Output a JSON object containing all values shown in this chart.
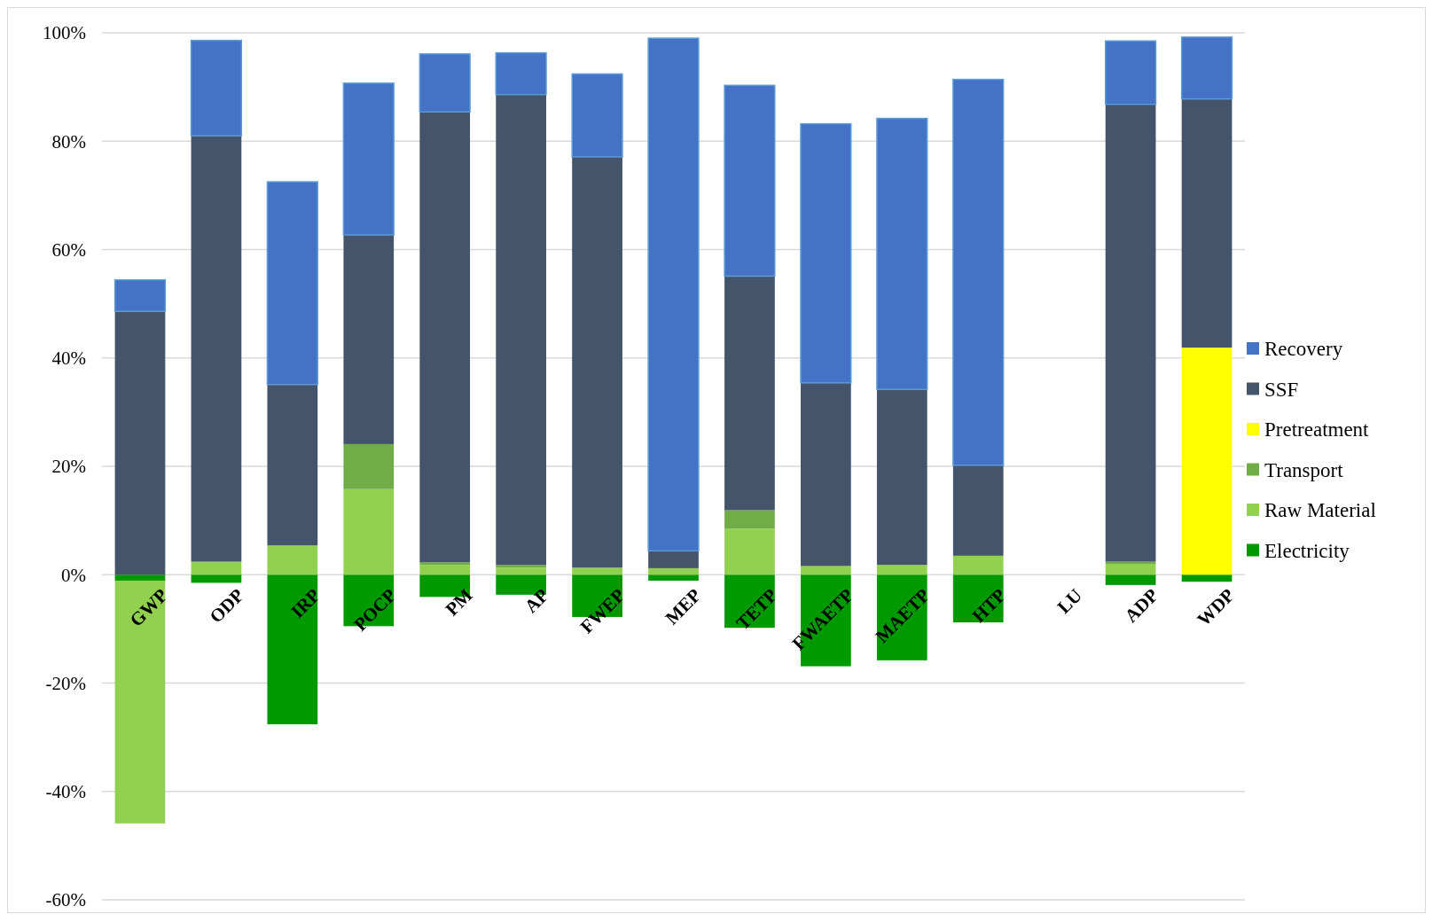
{
  "chart_data": {
    "type": "bar",
    "stacked": true,
    "categories": [
      "GWP",
      "ODP",
      "IRP",
      "POCP",
      "PM",
      "AP",
      "FWEP",
      "MEP",
      "TETP",
      "FWAETP",
      "MAETP",
      "HTP",
      "LU",
      "ADP",
      "WDP"
    ],
    "series": [
      {
        "name": "Electricity",
        "color": "#009900",
        "values": [
          -1.1,
          -1.5,
          -27.6,
          -9.5,
          -4.1,
          -3.7,
          -7.8,
          -1.1,
          -9.8,
          -16.9,
          -15.8,
          -8.8,
          null,
          -1.9,
          -1.3
        ]
      },
      {
        "name": "Raw Material",
        "color": "#92d050",
        "values": [
          -44.8,
          2.4,
          5.4,
          15.8,
          1.8,
          1.3,
          1.3,
          1.2,
          8.5,
          1.6,
          1.8,
          3.5,
          null,
          2.0,
          null
        ]
      },
      {
        "name": "Transport",
        "color": "#70ad47",
        "values": [
          null,
          null,
          null,
          8.3,
          0.5,
          0.5,
          null,
          null,
          3.4,
          null,
          null,
          null,
          null,
          0.4,
          null
        ]
      },
      {
        "name": "Pretreatment",
        "color": "#ffff00",
        "values": [
          null,
          null,
          null,
          null,
          null,
          null,
          null,
          null,
          null,
          null,
          null,
          null,
          null,
          null,
          41.9
        ]
      },
      {
        "name": "SSF",
        "color": "#44546a",
        "values": [
          48.6,
          78.6,
          29.7,
          38.6,
          83.1,
          86.8,
          75.8,
          3.2,
          43.2,
          33.8,
          32.4,
          16.7,
          null,
          84.4,
          45.9
        ]
      },
      {
        "name": "Recovery",
        "color": "#4472c4",
        "values": [
          5.8,
          17.6,
          37.4,
          28.0,
          10.7,
          7.7,
          15.3,
          94.6,
          35.2,
          47.8,
          50.0,
          71.2,
          null,
          11.7,
          11.4
        ]
      }
    ],
    "ylim": [
      -60,
      100
    ],
    "yticks": [
      {
        "value": -60,
        "label": "-60%"
      },
      {
        "value": -40,
        "label": "-40%"
      },
      {
        "value": -20,
        "label": "-20%"
      },
      {
        "value": 0,
        "label": "0%"
      },
      {
        "value": 20,
        "label": "20%"
      },
      {
        "value": 40,
        "label": "40%"
      },
      {
        "value": 60,
        "label": "60%"
      },
      {
        "value": 80,
        "label": "80%"
      },
      {
        "value": 100,
        "label": "100%"
      }
    ],
    "grid": "y",
    "legend": "right"
  }
}
